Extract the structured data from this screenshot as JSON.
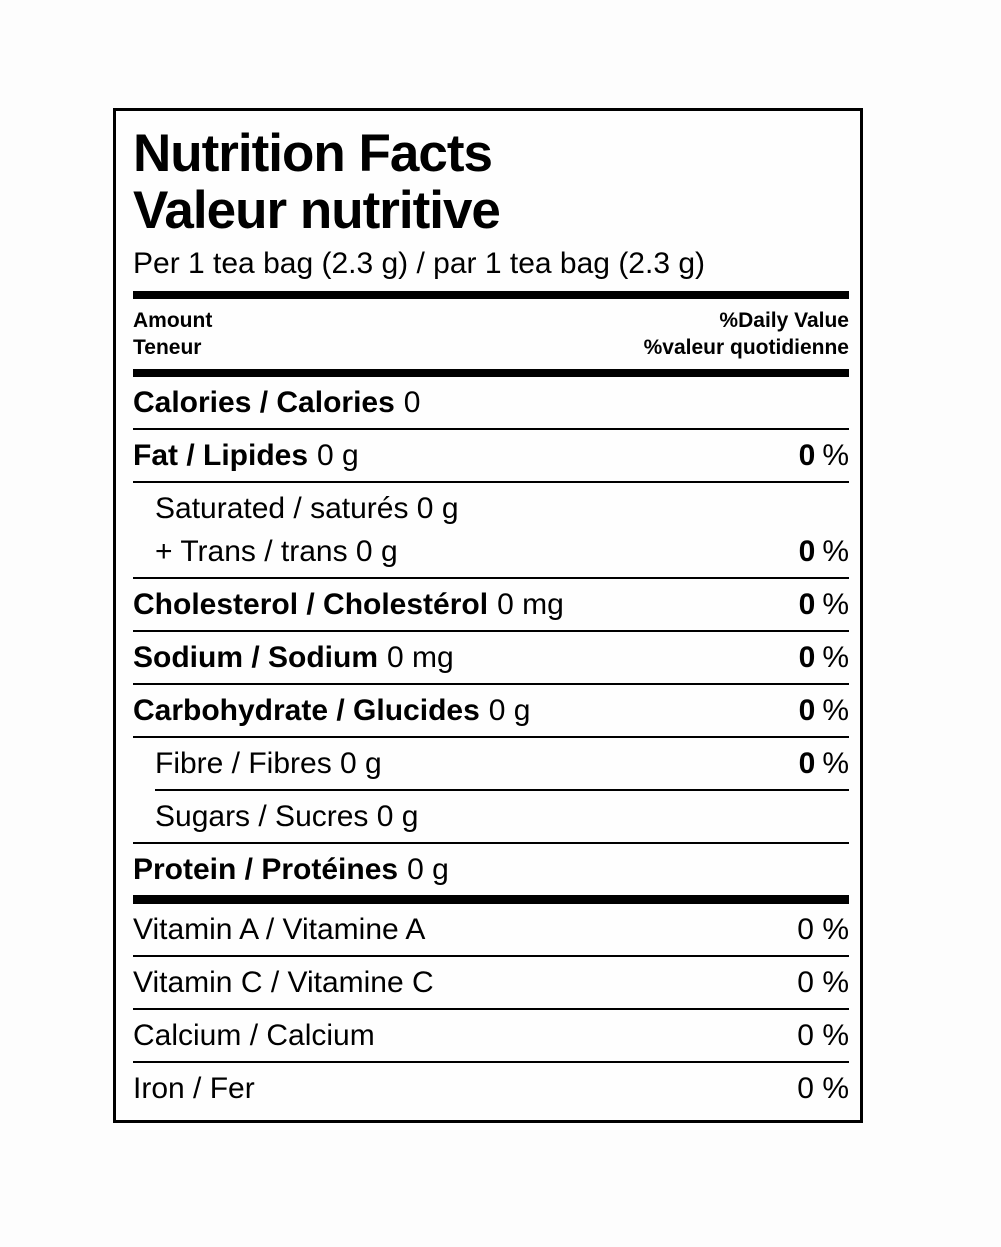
{
  "label": {
    "title_en": "Nutrition Facts",
    "title_fr": "Valeur nutritive",
    "serving": "Per 1 tea bag (2.3 g) / par 1 tea bag (2.3 g)",
    "header": {
      "amount_en": "Amount",
      "amount_fr": "Teneur",
      "dv_en": "%Daily Value",
      "dv_fr": "%valeur quotidienne"
    },
    "rows": {
      "calories": {
        "name": "Calories / Calories",
        "value": "0"
      },
      "fat": {
        "name": "Fat / Lipides",
        "value": "0 g",
        "dv": "0",
        "pct": "%"
      },
      "saturated_trans": {
        "line1": "Saturated / saturés 0 g",
        "line2": "+ Trans / trans 0 g",
        "dv": "0",
        "pct": "%"
      },
      "cholesterol": {
        "name": "Cholesterol / Cholestérol",
        "value": "0 mg",
        "dv": "0",
        "pct": "%"
      },
      "sodium": {
        "name": "Sodium / Sodium",
        "value": "0 mg",
        "dv": "0",
        "pct": "%"
      },
      "carbohydrate": {
        "name": "Carbohydrate / Glucides",
        "value": "0 g",
        "dv": "0",
        "pct": "%"
      },
      "fibre": {
        "name": "Fibre / Fibres 0 g",
        "dv": "0",
        "pct": "%"
      },
      "sugars": {
        "name": "Sugars / Sucres 0 g"
      },
      "protein": {
        "name": "Protein / Protéines",
        "value": "0 g"
      }
    },
    "micronutrients": [
      {
        "name": "Vitamin A / Vitamine A",
        "dv": "0 %"
      },
      {
        "name": "Vitamin C / Vitamine C",
        "dv": "0 %"
      },
      {
        "name": "Calcium / Calcium",
        "dv": "0 %"
      },
      {
        "name": "Iron / Fer",
        "dv": "0 %"
      }
    ],
    "colors": {
      "text": "#000000",
      "rule": "#000000",
      "background": "#fefefe"
    }
  }
}
